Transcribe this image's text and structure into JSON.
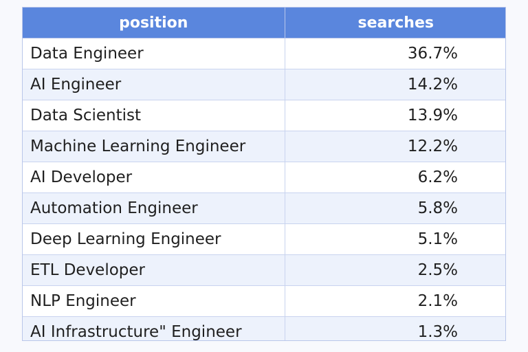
{
  "chart_data": {
    "type": "table",
    "columns": [
      "position",
      "searches"
    ],
    "rows": [
      {
        "position": "Data Engineer",
        "searches": "36.7%"
      },
      {
        "position": "AI Engineer",
        "searches": "14.2%"
      },
      {
        "position": "Data Scientist",
        "searches": "13.9%"
      },
      {
        "position": "Machine Learning Engineer",
        "searches": "12.2%"
      },
      {
        "position": "AI Developer",
        "searches": "6.2%"
      },
      {
        "position": "Automation Engineer",
        "searches": "5.8%"
      },
      {
        "position": "Deep Learning Engineer",
        "searches": "5.1%"
      },
      {
        "position": "ETL Developer",
        "searches": "2.5%"
      },
      {
        "position": "NLP Engineer",
        "searches": "2.1%"
      },
      {
        "position": "AI Infrastructure\" Engineer",
        "searches": "1.3%"
      }
    ],
    "colors": {
      "header": "#5a86dd",
      "stripe": "#edf2fc",
      "border": "#b9c6ea"
    }
  }
}
